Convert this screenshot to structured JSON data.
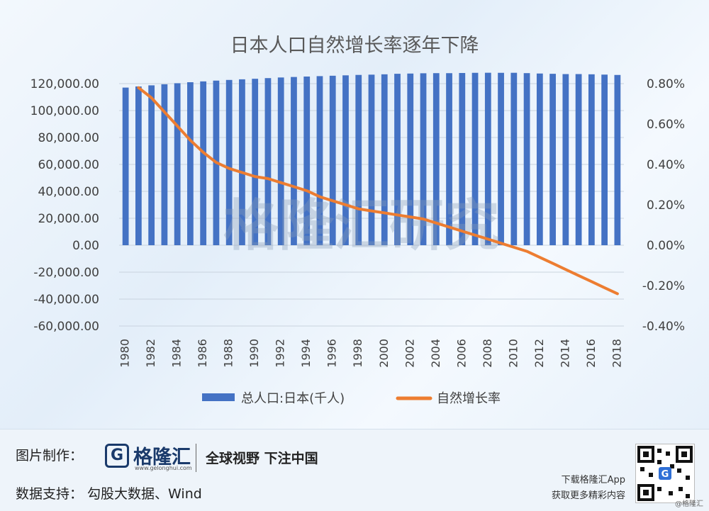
{
  "chart_data": {
    "type": "bar+line",
    "title": "日本人口自然增长率逐年下降",
    "watermark": "格隆汇研究",
    "x": [
      1980,
      1981,
      1982,
      1983,
      1984,
      1985,
      1986,
      1987,
      1988,
      1989,
      1990,
      1991,
      1992,
      1993,
      1994,
      1995,
      1996,
      1997,
      1998,
      1999,
      2000,
      2001,
      2002,
      2003,
      2004,
      2005,
      2006,
      2007,
      2008,
      2009,
      2010,
      2011,
      2012,
      2013,
      2014,
      2015,
      2016,
      2017,
      2018
    ],
    "x_tick_labels": [
      "1980",
      "1982",
      "1984",
      "1986",
      "1988",
      "1990",
      "1992",
      "1994",
      "1996",
      "1998",
      "2000",
      "2002",
      "2004",
      "2006",
      "2008",
      "2010",
      "2012",
      "2014",
      "2016",
      "2018"
    ],
    "series": [
      {
        "name": "总人口:日本(千人)",
        "axis": "left",
        "type": "bar",
        "color": "#4472c4",
        "values": [
          117060,
          117902,
          118728,
          119536,
          120305,
          121049,
          121660,
          122239,
          122745,
          123205,
          123611,
          124101,
          124567,
          124938,
          125265,
          125570,
          125859,
          126157,
          126472,
          126667,
          126926,
          127316,
          127486,
          127694,
          127787,
          127768,
          127901,
          128033,
          128084,
          128032,
          128057,
          127799,
          127515,
          127298,
          127083,
          127095,
          126933,
          126706,
          126443
        ]
      },
      {
        "name": "自然增长率",
        "axis": "right",
        "type": "line",
        "color": "#ed7d31",
        "values_percent": [
          null,
          0.78,
          0.73,
          0.66,
          0.59,
          0.52,
          0.46,
          0.41,
          0.38,
          0.36,
          0.34,
          0.33,
          0.31,
          0.29,
          0.27,
          0.24,
          0.22,
          0.2,
          0.18,
          0.17,
          0.16,
          0.15,
          0.14,
          0.13,
          0.11,
          0.09,
          0.07,
          0.05,
          0.03,
          0.01,
          -0.01,
          -0.03,
          -0.06,
          -0.09,
          -0.12,
          -0.15,
          -0.18,
          -0.21,
          -0.24
        ]
      }
    ],
    "y_left": {
      "range": [
        -60000,
        120000
      ],
      "ticks": [
        -60000,
        -40000,
        -20000,
        0,
        20000,
        40000,
        60000,
        80000,
        100000,
        120000
      ],
      "tick_labels": [
        "-60,000.00",
        "-40,000.00",
        "-20,000.00",
        "0.00",
        "20,000.00",
        "40,000.00",
        "60,000.00",
        "80,000.00",
        "100,000.00",
        "120,000.00"
      ]
    },
    "y_right": {
      "range": [
        -0.4,
        0.8
      ],
      "ticks": [
        -0.4,
        -0.2,
        0,
        0.2,
        0.4,
        0.6,
        0.8
      ],
      "tick_labels": [
        "-0.40%",
        "-0.20%",
        "0.00%",
        "0.20%",
        "0.40%",
        "0.60%",
        "0.80%"
      ]
    },
    "legend_position": "bottom",
    "grid": true
  },
  "footer": {
    "credit_label": "图片制作：",
    "logo_mark": "G",
    "logo_name": "格隆汇",
    "logo_url": "www.gelonghui.com",
    "slogan": "全球视野 下注中国",
    "data_label": "数据支持： 勾股大数据、Wind",
    "download_line1": "下载格隆汇App",
    "download_line2": "获取更多精彩内容",
    "copyright": "@格隆汇"
  },
  "colors": {
    "title": "#595959",
    "axis_text": "#404040",
    "gridline": "#c9d3de"
  }
}
